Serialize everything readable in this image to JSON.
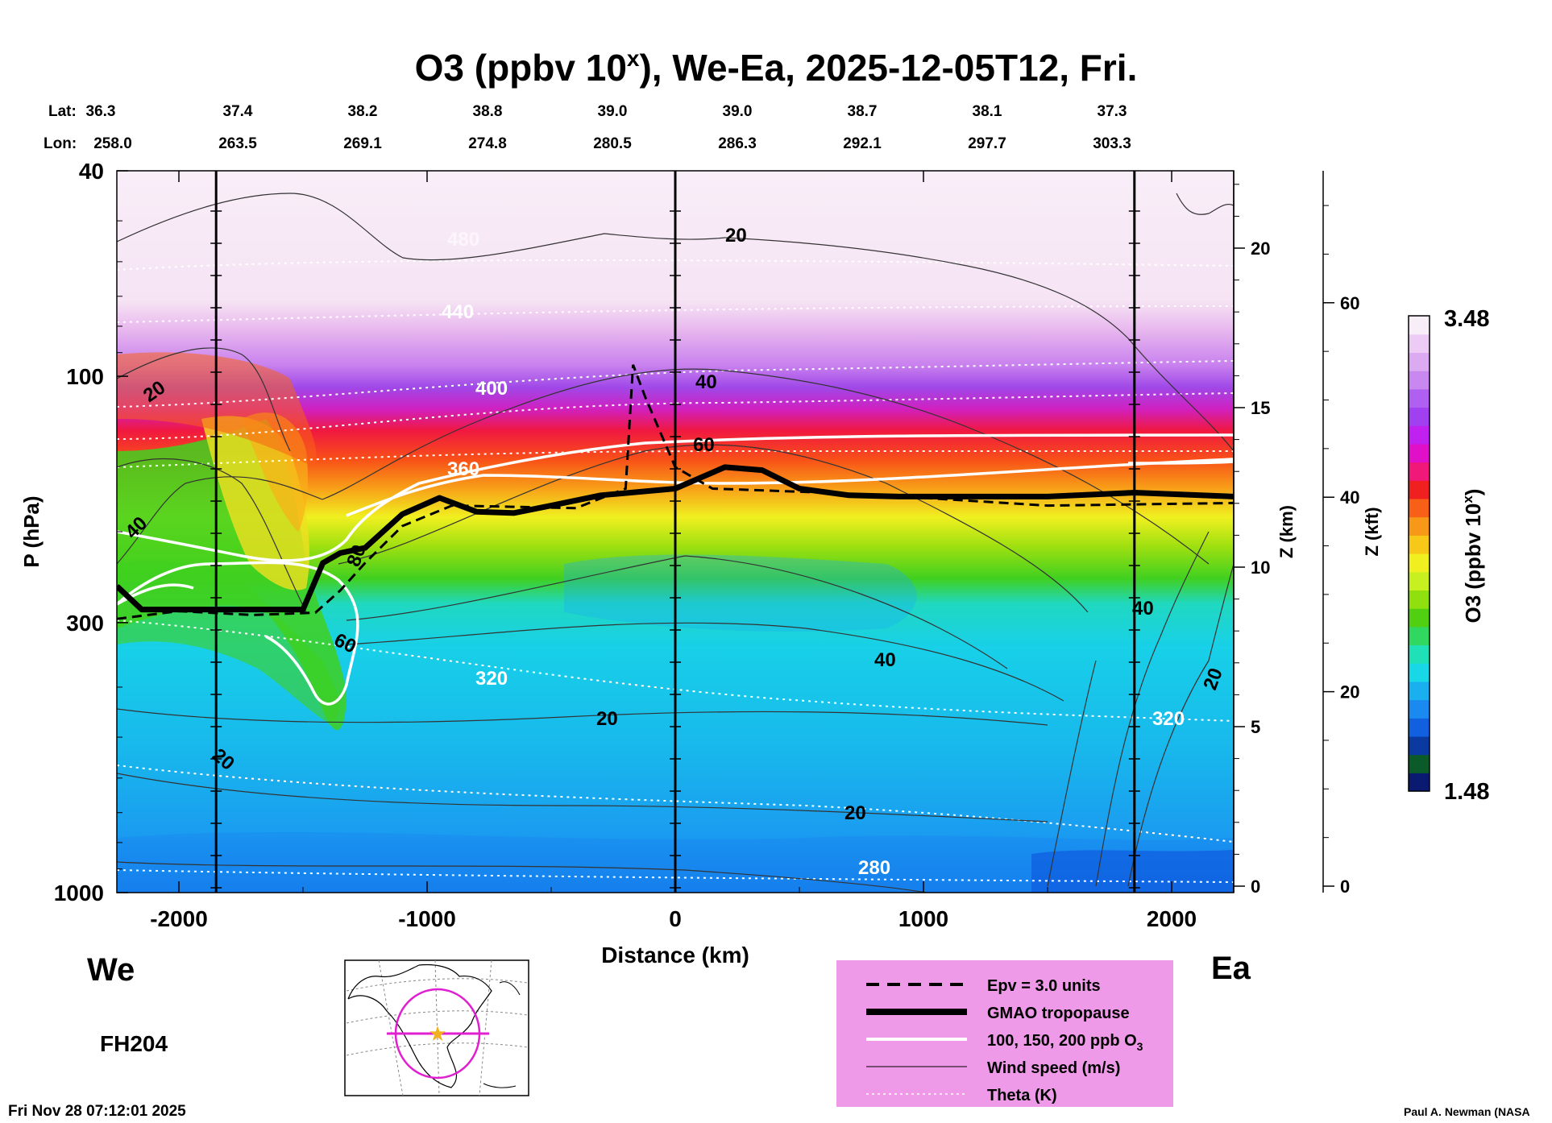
{
  "chart_data": {
    "type": "heatmap",
    "title": {
      "prefix": "O3 (ppbv 10",
      "sup": "x",
      "suffix": "), We-Ea, 2025-12-05T12, Fri."
    },
    "xlabel": "Distance (km)",
    "ylabel": "P (hPa)",
    "y2label": "Z (km)",
    "y3label": "Z (kft)",
    "xlim": [
      -2250,
      2250
    ],
    "ylim_hpa": [
      1000,
      40
    ],
    "y_scale": "log",
    "x_ticks": [
      "-2000",
      "-1000",
      "0",
      "1000",
      "2000"
    ],
    "x_tick_values": [
      -2000,
      -1000,
      0,
      1000,
      2000
    ],
    "y_ticks": [
      "40",
      "100",
      "300",
      "1000"
    ],
    "y_tick_values": [
      40,
      100,
      300,
      1000
    ],
    "z_km_ticks": [
      "0",
      "5",
      "10",
      "15",
      "20"
    ],
    "z_km_values": [
      0,
      5,
      10,
      15,
      20
    ],
    "z_kft_ticks": [
      "0",
      "20",
      "40",
      "60"
    ],
    "z_kft_values": [
      0,
      20,
      40,
      60
    ],
    "lat_label": "Lat:",
    "lon_label": "Lon:",
    "lats": [
      "36.3",
      "37.4",
      "38.2",
      "38.8",
      "39.0",
      "39.0",
      "38.7",
      "38.1",
      "37.3"
    ],
    "lons": [
      "258.0",
      "263.5",
      "269.1",
      "274.8",
      "280.5",
      "286.3",
      "292.1",
      "297.7",
      "303.3"
    ],
    "vertical_markers_km": [
      -1850,
      0,
      1850
    ],
    "colorbar": {
      "label_prefix": "O3 (ppbv 10",
      "label_sup": "x",
      "label_suffix": ")",
      "max": "3.48",
      "min": "1.48",
      "colors": [
        "#0a1a70",
        "#0a5a2a",
        "#0a3aa0",
        "#1060e0",
        "#1a8af0",
        "#1ab0f0",
        "#18d8e8",
        "#20e0b8",
        "#30d860",
        "#50d010",
        "#90e010",
        "#c8f020",
        "#f0f020",
        "#f8c818",
        "#f89818",
        "#f86018",
        "#f02020",
        "#f01878",
        "#e010c8",
        "#c020f0",
        "#a040f0",
        "#b060f0",
        "#c888f0",
        "#dcaaf0",
        "#ecccf4",
        "#f8eef8"
      ]
    },
    "theta_labels": [
      "440",
      "400",
      "360",
      "320",
      "280",
      "480",
      "320"
    ],
    "wind_labels": [
      "20",
      "40",
      "60",
      "80",
      "20",
      "40",
      "60",
      "40",
      "20",
      "20",
      "40",
      "20"
    ],
    "tropopause": [
      [
        -2250,
        255
      ],
      [
        -2150,
        283
      ],
      [
        -2000,
        283
      ],
      [
        -1500,
        283
      ],
      [
        -1420,
        230
      ],
      [
        -1350,
        220
      ],
      [
        -1250,
        215
      ],
      [
        -1100,
        185
      ],
      [
        -950,
        172
      ],
      [
        -800,
        183
      ],
      [
        -650,
        184
      ],
      [
        -500,
        178
      ],
      [
        -300,
        170
      ],
      [
        0,
        165
      ],
      [
        200,
        150
      ],
      [
        350,
        152
      ],
      [
        500,
        165
      ],
      [
        700,
        170
      ],
      [
        900,
        171
      ],
      [
        1200,
        171
      ],
      [
        1500,
        171
      ],
      [
        1850,
        168
      ],
      [
        2250,
        171
      ]
    ],
    "epv": [
      [
        -2250,
        295
      ],
      [
        -2000,
        285
      ],
      [
        -1700,
        290
      ],
      [
        -1450,
        287
      ],
      [
        -1350,
        260
      ],
      [
        -1250,
        230
      ],
      [
        -1100,
        195
      ],
      [
        -900,
        178
      ],
      [
        -400,
        180
      ],
      [
        -200,
        165
      ],
      [
        -170,
        95
      ],
      [
        -120,
        110
      ],
      [
        0,
        150
      ],
      [
        150,
        165
      ],
      [
        600,
        168
      ],
      [
        1000,
        172
      ],
      [
        1500,
        178
      ],
      [
        2250,
        176
      ]
    ],
    "fh_label": "FH204",
    "side_left": "We",
    "side_right": "Ea",
    "legend": [
      {
        "label": "Epv = 3.0 units",
        "style": "dashed"
      },
      {
        "label": "GMAO tropopause",
        "style": "thick"
      },
      {
        "label": "100, 150, 200 ppb O",
        "sub": "3",
        "style": "white"
      },
      {
        "label": "Wind speed (m/s)",
        "style": "thin"
      },
      {
        "label": "Theta (K)",
        "style": "dotted"
      }
    ],
    "timestamp": "Fri Nov 28 07:12:01 2025",
    "credit": "Paul A. Newman (NASA",
    "legend_color": "#ee9ae8",
    "map_track_color": "#e020d0"
  }
}
